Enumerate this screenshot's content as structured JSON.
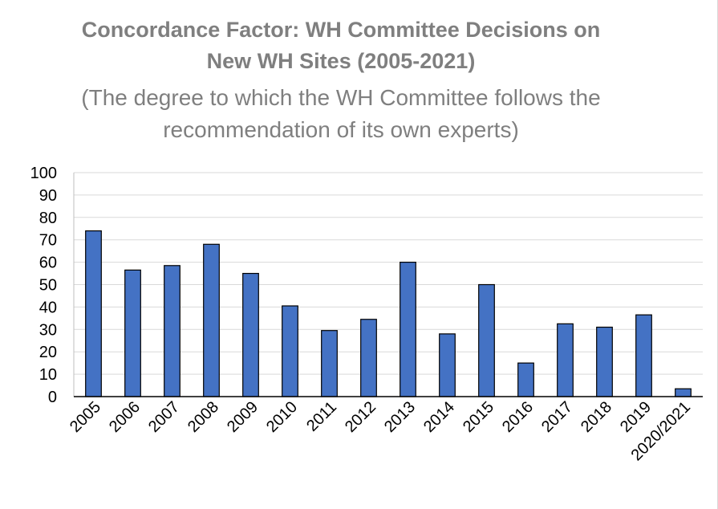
{
  "chart_data": {
    "type": "bar",
    "title_lines": [
      "Concordance Factor: WH Committee Decisions on",
      "New WH Sites  (2005-2021)"
    ],
    "subtitle_lines": [
      "(The degree to which the WH Committee follows the",
      "recommendation of its own experts)"
    ],
    "categories": [
      "2005",
      "2006",
      "2007",
      "2008",
      "2009",
      "2010",
      "2011",
      "2012",
      "2013",
      "2014",
      "2015",
      "2016",
      "2017",
      "2018",
      "2019",
      "2020/2021"
    ],
    "values": [
      74,
      56.5,
      58.5,
      68,
      55,
      40.5,
      29.5,
      34.5,
      60,
      28,
      50,
      15,
      32.5,
      31,
      36.5,
      3.5
    ],
    "y_ticks": [
      "0",
      "10",
      "20",
      "30",
      "40",
      "50",
      "60",
      "70",
      "80",
      "90",
      "100"
    ],
    "ylim": [
      0,
      100
    ],
    "grid": true,
    "bar_color": "#4472c4",
    "bar_border_color": "#000000",
    "grid_color": "#d9d9d9",
    "text_color": "#000000",
    "title_color": "#7f7f7f"
  }
}
